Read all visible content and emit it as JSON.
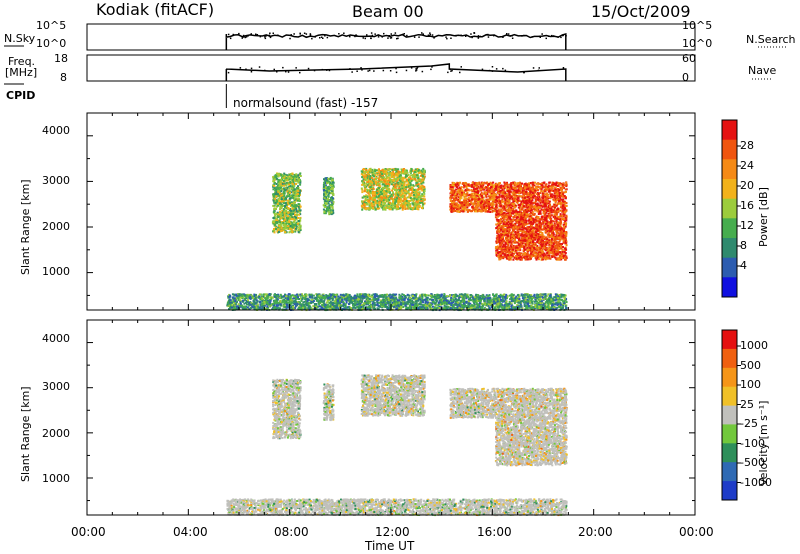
{
  "header": {
    "station": "Kodiak (fitACF)",
    "beam": "Beam 00",
    "date": "15/Oct/2009"
  },
  "summary": {
    "nsky_label": "N.Sky",
    "nsearch_label": "N.Search",
    "noise_ticks_left": [
      "10^5",
      "10^0"
    ],
    "noise_ticks_right": [
      "10^5",
      "10^0"
    ],
    "freq_label_1": "Freq.",
    "freq_label_2": "[MHz]",
    "freq_ticks": [
      "18",
      "8"
    ],
    "nave_label": "Nave",
    "nave_ticks": [
      "60",
      "0"
    ],
    "cpid_label": "CPID",
    "cpid_value": "normalsound (fast) -157"
  },
  "power_panel": {
    "ylabel": "Slant Range [km]",
    "yticks": [
      "4000",
      "3000",
      "2000",
      "1000"
    ],
    "colorbar_label": "Power [dB]",
    "colorbar_ticks": [
      "28",
      "24",
      "20",
      "16",
      "12",
      "8",
      "4"
    ],
    "colors": [
      "#1010e0",
      "#2c5cb0",
      "#2f8a6e",
      "#46ad4e",
      "#9ccc3c",
      "#f2b21b",
      "#f58a16",
      "#f0550f",
      "#e51212"
    ]
  },
  "velocity_panel": {
    "ylabel": "Slant Range [km]",
    "yticks": [
      "4000",
      "3000",
      "2000",
      "1000"
    ],
    "colorbar_label": "Velocity [m s⁻¹]",
    "colorbar_ticks": [
      "1000",
      "500",
      "100",
      "25",
      "-25",
      "-100",
      "-500",
      "-1000"
    ],
    "colors": [
      "#1e3cc8",
      "#2f6ab4",
      "#2e8f5a",
      "#72c83c",
      "#c0c0bc",
      "#f0c028",
      "#f59518",
      "#f06010",
      "#e51010"
    ]
  },
  "xaxis": {
    "label": "Time UT",
    "ticks": [
      "00:00",
      "04:00",
      "08:00",
      "12:00",
      "16:00",
      "20:00",
      "00:00"
    ]
  },
  "chart_data": [
    {
      "type": "heatmap",
      "title": "",
      "xlabel": "Time UT",
      "ylabel": "Slant Range [km]",
      "xlim_hours": [
        0,
        24
      ],
      "ylim_km": [
        180,
        4500
      ],
      "colorbar": "Power [dB]",
      "colorbar_range": [
        0,
        32
      ],
      "data_window_hours": [
        5.5,
        18.9
      ],
      "echo_regions": [
        {
          "t0": 5.5,
          "t1": 18.9,
          "r0": 200,
          "r1": 550,
          "level": 0.3
        },
        {
          "t0": 7.3,
          "t1": 8.4,
          "r0": 1900,
          "r1": 3200,
          "level": 0.45
        },
        {
          "t0": 9.3,
          "t1": 9.7,
          "r0": 2300,
          "r1": 3100,
          "level": 0.35
        },
        {
          "t0": 10.8,
          "t1": 13.3,
          "r0": 2400,
          "r1": 3300,
          "level": 0.55
        },
        {
          "t0": 14.3,
          "t1": 16.1,
          "r0": 2350,
          "r1": 3000,
          "level": 0.85
        },
        {
          "t0": 16.1,
          "t1": 18.9,
          "r0": 1300,
          "r1": 3000,
          "level": 0.9
        }
      ]
    },
    {
      "type": "heatmap",
      "title": "",
      "xlabel": "Time UT",
      "ylabel": "Slant Range [km]",
      "xlim_hours": [
        0,
        24
      ],
      "ylim_km": [
        180,
        4500
      ],
      "colorbar": "Velocity [m s⁻¹]",
      "colorbar_range": [
        -1000,
        1000
      ],
      "data_window_hours": [
        5.5,
        18.9
      ],
      "echo_regions": [
        {
          "t0": 5.5,
          "t1": 18.9,
          "r0": 200,
          "r1": 550,
          "level": 0.45
        },
        {
          "t0": 7.3,
          "t1": 8.4,
          "r0": 1900,
          "r1": 3200,
          "level": 0.5
        },
        {
          "t0": 9.3,
          "t1": 9.7,
          "r0": 2300,
          "r1": 3100,
          "level": 0.5
        },
        {
          "t0": 10.8,
          "t1": 13.3,
          "r0": 2400,
          "r1": 3300,
          "level": 0.5
        },
        {
          "t0": 14.3,
          "t1": 16.1,
          "r0": 2350,
          "r1": 3000,
          "level": 0.55
        },
        {
          "t0": 16.1,
          "t1": 18.9,
          "r0": 1300,
          "r1": 3000,
          "level": 0.6
        }
      ]
    }
  ]
}
